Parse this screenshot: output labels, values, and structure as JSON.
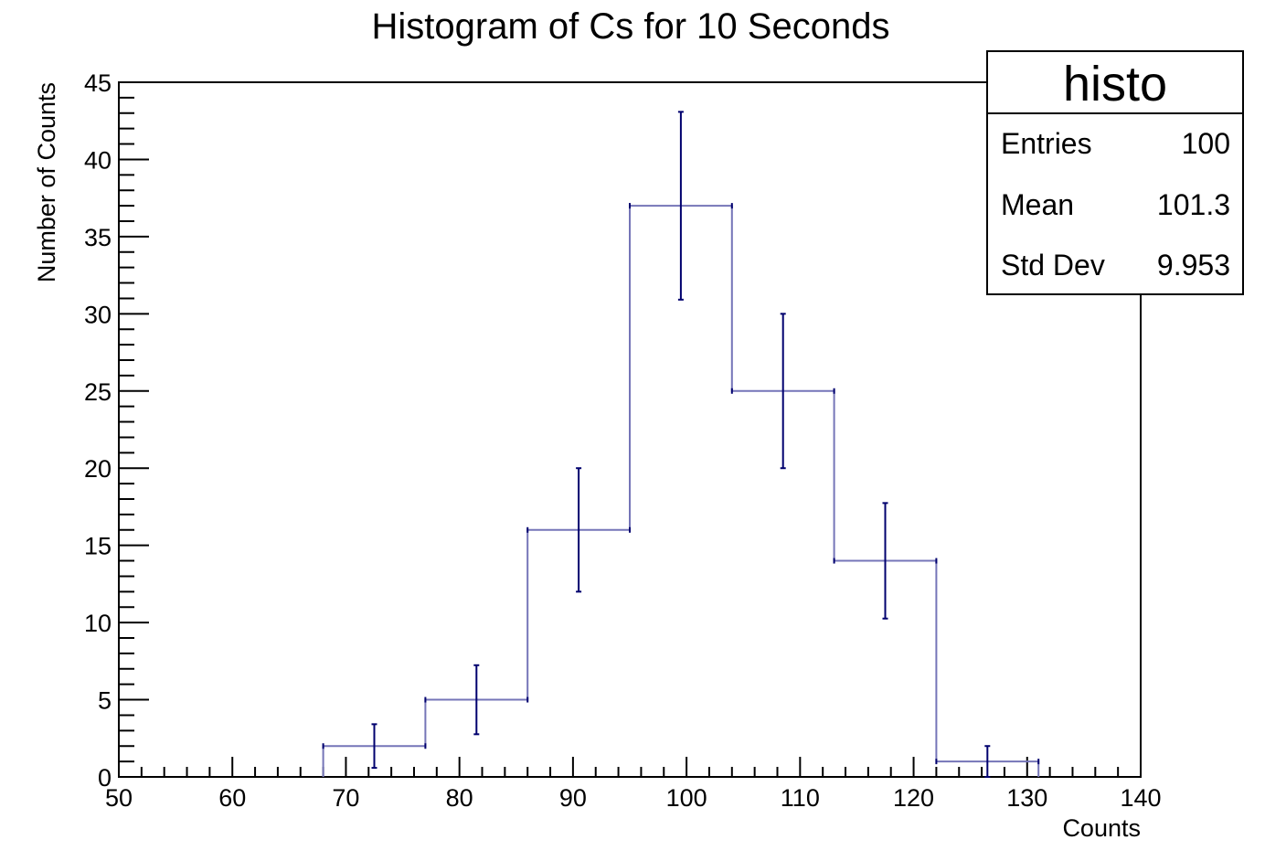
{
  "chart_data": {
    "type": "bar",
    "title": "Histogram of Cs for 10 Seconds",
    "xlabel": "Counts",
    "ylabel": "Number of Counts",
    "xlim": [
      50,
      140
    ],
    "ylim": [
      0,
      45
    ],
    "x_ticks": [
      50,
      60,
      70,
      80,
      90,
      100,
      110,
      120,
      130,
      140
    ],
    "y_ticks": [
      0,
      5,
      10,
      15,
      20,
      25,
      30,
      35,
      40,
      45
    ],
    "bins": [
      {
        "low": 68,
        "high": 77,
        "value": 2,
        "error": 1.414
      },
      {
        "low": 77,
        "high": 86,
        "value": 5,
        "error": 2.236
      },
      {
        "low": 86,
        "high": 95,
        "value": 16,
        "error": 4.0
      },
      {
        "low": 95,
        "high": 104,
        "value": 37,
        "error": 6.083
      },
      {
        "low": 104,
        "high": 113,
        "value": 25,
        "error": 5.0
      },
      {
        "low": 113,
        "high": 122,
        "value": 14,
        "error": 3.742
      },
      {
        "low": 122,
        "high": 131,
        "value": 1,
        "error": 1.0
      }
    ],
    "line_color": "#7575b8",
    "error_color": "#00006e",
    "grid": false,
    "stats_box": {
      "title": "histo",
      "rows": [
        {
          "label": "Entries",
          "value": "100"
        },
        {
          "label": "Mean",
          "value": "101.3"
        },
        {
          "label": "Std Dev",
          "value": "9.953"
        }
      ]
    }
  }
}
